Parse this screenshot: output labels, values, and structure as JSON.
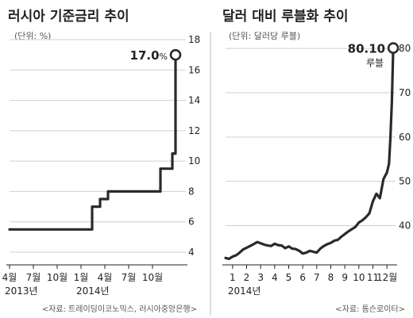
{
  "chart_data": [
    {
      "type": "line",
      "title": "러시아 기준금리 추이",
      "unit_note": "(단위: %)",
      "source": "<자료: 트레이딩이코노믹스, 러시아중앙은행>",
      "y_ticks": [
        4,
        6,
        8,
        10,
        12,
        14,
        16,
        18
      ],
      "ylim": [
        4,
        18
      ],
      "xlim": [
        0,
        22
      ],
      "x_tick_labels": [
        {
          "x": 0,
          "label": "4월"
        },
        {
          "x": 3,
          "label": "7월"
        },
        {
          "x": 6,
          "label": "10월"
        },
        {
          "x": 9,
          "label": "1월"
        },
        {
          "x": 12,
          "label": "4월"
        },
        {
          "x": 15,
          "label": "7월"
        },
        {
          "x": 18,
          "label": "10월"
        }
      ],
      "year_labels": [
        {
          "x": 0,
          "label": "2013년"
        },
        {
          "x": 9,
          "label": "2014년"
        }
      ],
      "series": [
        {
          "x": [
            0,
            10.4,
            10.4,
            11.4,
            11.4,
            12.4,
            12.4,
            16,
            16,
            19,
            19,
            20.5,
            20.5,
            20.9,
            20.9
          ],
          "values": [
            5.5,
            5.5,
            7.0,
            7.0,
            7.5,
            7.5,
            8.0,
            8.0,
            8.0,
            8.0,
            9.5,
            9.5,
            10.5,
            10.5,
            17.0
          ]
        }
      ],
      "end_label": {
        "value": "17.0",
        "unit": "%"
      }
    },
    {
      "type": "line",
      "title": "달러 대비 루블화 추이",
      "unit_note": "(단위: 달러당 루블)",
      "source": "<자료: 톰슨로이터>",
      "y_ticks": [
        40,
        50,
        60,
        70,
        80
      ],
      "ylim": [
        34,
        82
      ],
      "xlim": [
        0.5,
        12.5
      ],
      "x_tick_labels": [
        {
          "x": 1,
          "label": "1"
        },
        {
          "x": 2,
          "label": "2"
        },
        {
          "x": 3,
          "label": "3"
        },
        {
          "x": 4,
          "label": "4"
        },
        {
          "x": 5,
          "label": "5"
        },
        {
          "x": 6,
          "label": "6"
        },
        {
          "x": 7,
          "label": "7"
        },
        {
          "x": 8,
          "label": "8"
        },
        {
          "x": 9,
          "label": "9"
        },
        {
          "x": 10,
          "label": "10"
        },
        {
          "x": 11,
          "label": "11"
        },
        {
          "x": 12,
          "label": "12월"
        }
      ],
      "year_labels": [
        {
          "x": 1,
          "label": "2014년"
        }
      ],
      "series": [
        {
          "x": [
            0.5,
            0.75,
            1.0,
            1.25,
            1.5,
            1.75,
            2.0,
            2.25,
            2.5,
            2.75,
            3.0,
            3.25,
            3.5,
            3.75,
            4.0,
            4.25,
            4.5,
            4.75,
            5.0,
            5.25,
            5.5,
            5.75,
            6.0,
            6.25,
            6.5,
            6.75,
            7.0,
            7.25,
            7.5,
            7.75,
            8.0,
            8.25,
            8.5,
            8.75,
            9.0,
            9.25,
            9.5,
            9.75,
            10.0,
            10.25,
            10.5,
            10.75,
            11.0,
            11.25,
            11.5,
            11.75,
            12.0,
            12.15,
            12.25,
            12.35,
            12.45
          ],
          "values": [
            32.7,
            32.5,
            33.0,
            33.3,
            33.9,
            34.6,
            35.0,
            35.4,
            35.8,
            36.3,
            36.0,
            35.7,
            35.5,
            35.4,
            35.9,
            35.6,
            35.5,
            34.9,
            35.3,
            34.8,
            34.7,
            34.3,
            33.7,
            33.9,
            34.3,
            34.1,
            33.9,
            34.8,
            35.4,
            35.8,
            36.1,
            36.6,
            36.8,
            37.5,
            38.1,
            38.7,
            39.2,
            39.7,
            40.7,
            41.2,
            41.9,
            42.8,
            45.5,
            47.2,
            46.2,
            50.5,
            52.0,
            54.0,
            60.0,
            68.0,
            80.1
          ]
        }
      ],
      "end_label": {
        "value": "80.10",
        "unit": "루블"
      }
    }
  ],
  "colors": {
    "line": "#2a2a2a",
    "grid": "#cfcfcf",
    "text": "#222222",
    "muted": "#666666",
    "divider": "#bdbdbd"
  }
}
